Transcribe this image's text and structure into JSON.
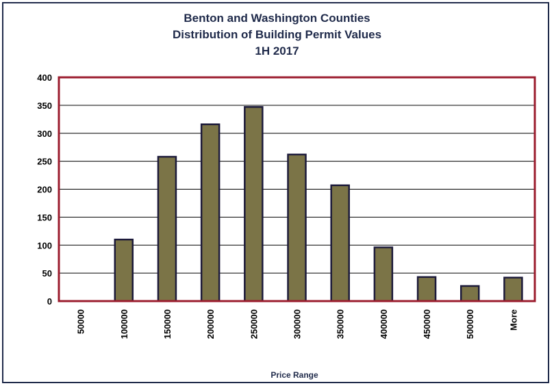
{
  "chart_data": {
    "type": "bar",
    "title": [
      "Benton and Washington Counties",
      "Distribution of Building Permit Values",
      "1H 2017"
    ],
    "categories": [
      "50000",
      "100000",
      "150000",
      "200000",
      "250000",
      "300000",
      "350000",
      "400000",
      "450000",
      "500000",
      "More"
    ],
    "values": [
      0,
      110,
      258,
      316,
      347,
      262,
      207,
      96,
      43,
      27,
      42
    ],
    "xlabel": "Price Range",
    "ylabel": "",
    "ylim": [
      0,
      400
    ],
    "yticks": [
      0,
      50,
      100,
      150,
      200,
      250,
      300,
      350,
      400
    ],
    "grid": true,
    "legend": "none",
    "colors": {
      "bar_fill": "#7b7447",
      "bar_edge": "#1c1a3a",
      "plot_border": "#9b1c2e",
      "title": "#1f2a4a",
      "frame": "#1f2a4a"
    }
  }
}
